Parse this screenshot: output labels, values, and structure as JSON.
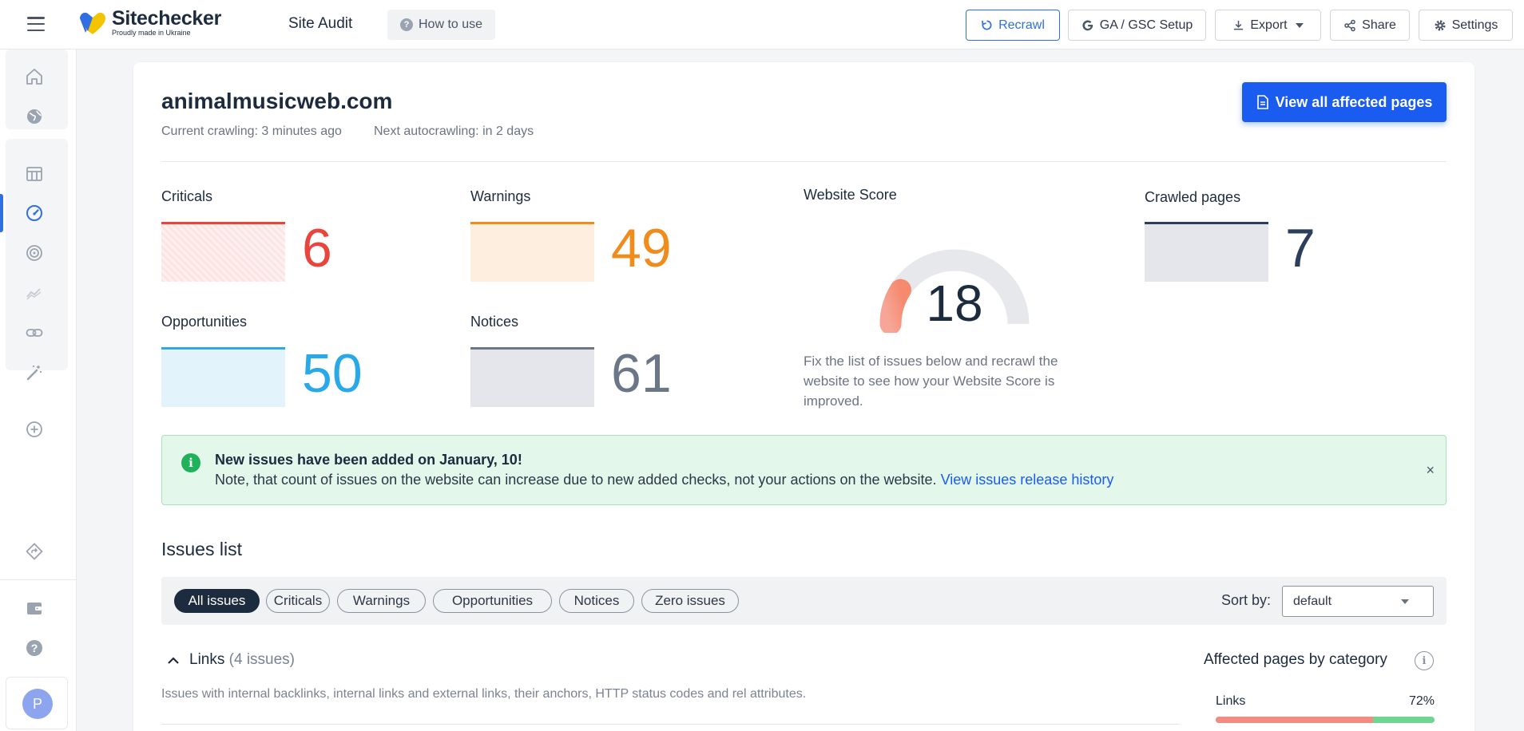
{
  "app": {
    "brand": "Sitechecker",
    "tagline": "Proudly made in Ukraine",
    "page_title": "Site Audit",
    "how_to_use": "How to use"
  },
  "toolbar": {
    "recrawl": "Recrawl",
    "ga_gsc": "GA / GSC Setup",
    "export": "Export",
    "share": "Share",
    "settings": "Settings"
  },
  "sidebar": {
    "items": [
      {
        "icon": "home-icon"
      },
      {
        "icon": "globe-icon"
      },
      {
        "icon": "table-icon"
      },
      {
        "icon": "speedometer-icon",
        "active": true
      },
      {
        "icon": "target-icon"
      },
      {
        "icon": "trend-icon"
      },
      {
        "icon": "link-icon"
      },
      {
        "icon": "magic-wand-icon"
      },
      {
        "icon": "add-circle-icon"
      },
      {
        "icon": "route-icon"
      },
      {
        "icon": "wallet-icon"
      },
      {
        "icon": "help-icon"
      }
    ],
    "avatar_letter": "P"
  },
  "site": {
    "domain": "animalmusicweb.com",
    "current_crawling": "Current crawling: 3 minutes ago",
    "next_autocrawling": "Next autocrawling: in 2 days",
    "view_all_button": "View all affected pages"
  },
  "stats": {
    "criticals": {
      "label": "Criticals",
      "value": "6",
      "color": "#e8453c"
    },
    "warnings": {
      "label": "Warnings",
      "value": "49",
      "color": "#f08c1c"
    },
    "opportunities": {
      "label": "Opportunities",
      "value": "50",
      "color": "#2aa9e8"
    },
    "notices": {
      "label": "Notices",
      "value": "61",
      "color": "#6b7687"
    },
    "crawled_pages": {
      "label": "Crawled pages",
      "value": "7",
      "color": "#2c3e5c"
    }
  },
  "score": {
    "label": "Website Score",
    "value": "18",
    "fraction": 0.18,
    "description": "Fix the list of issues below and recrawl the website to see how your Website Score is improved."
  },
  "notice": {
    "title": "New issues have been added on January, 10!",
    "text": "Note, that count of issues on the website can increase due to new added checks, not your actions on the website.",
    "link": "View issues release history",
    "close": "×"
  },
  "issues": {
    "title": "Issues list",
    "filters": [
      "All issues",
      "Criticals",
      "Warnings",
      "Opportunities",
      "Notices",
      "Zero issues"
    ],
    "active_filter": "All issues",
    "sort_label": "Sort by:",
    "sort_value": "default",
    "section": {
      "name": "Links",
      "count": "(4 issues)",
      "description": "Issues with internal backlinks, internal links and external links, their anchors, HTTP status codes and rel attributes."
    },
    "affected": {
      "title": "Affected pages by category",
      "rows": [
        {
          "label": "Links",
          "percent": "72%",
          "fraction": 0.72
        }
      ]
    }
  },
  "colors": {
    "accent": "#1a5cf0",
    "success_bg": "#e3f7ea"
  }
}
